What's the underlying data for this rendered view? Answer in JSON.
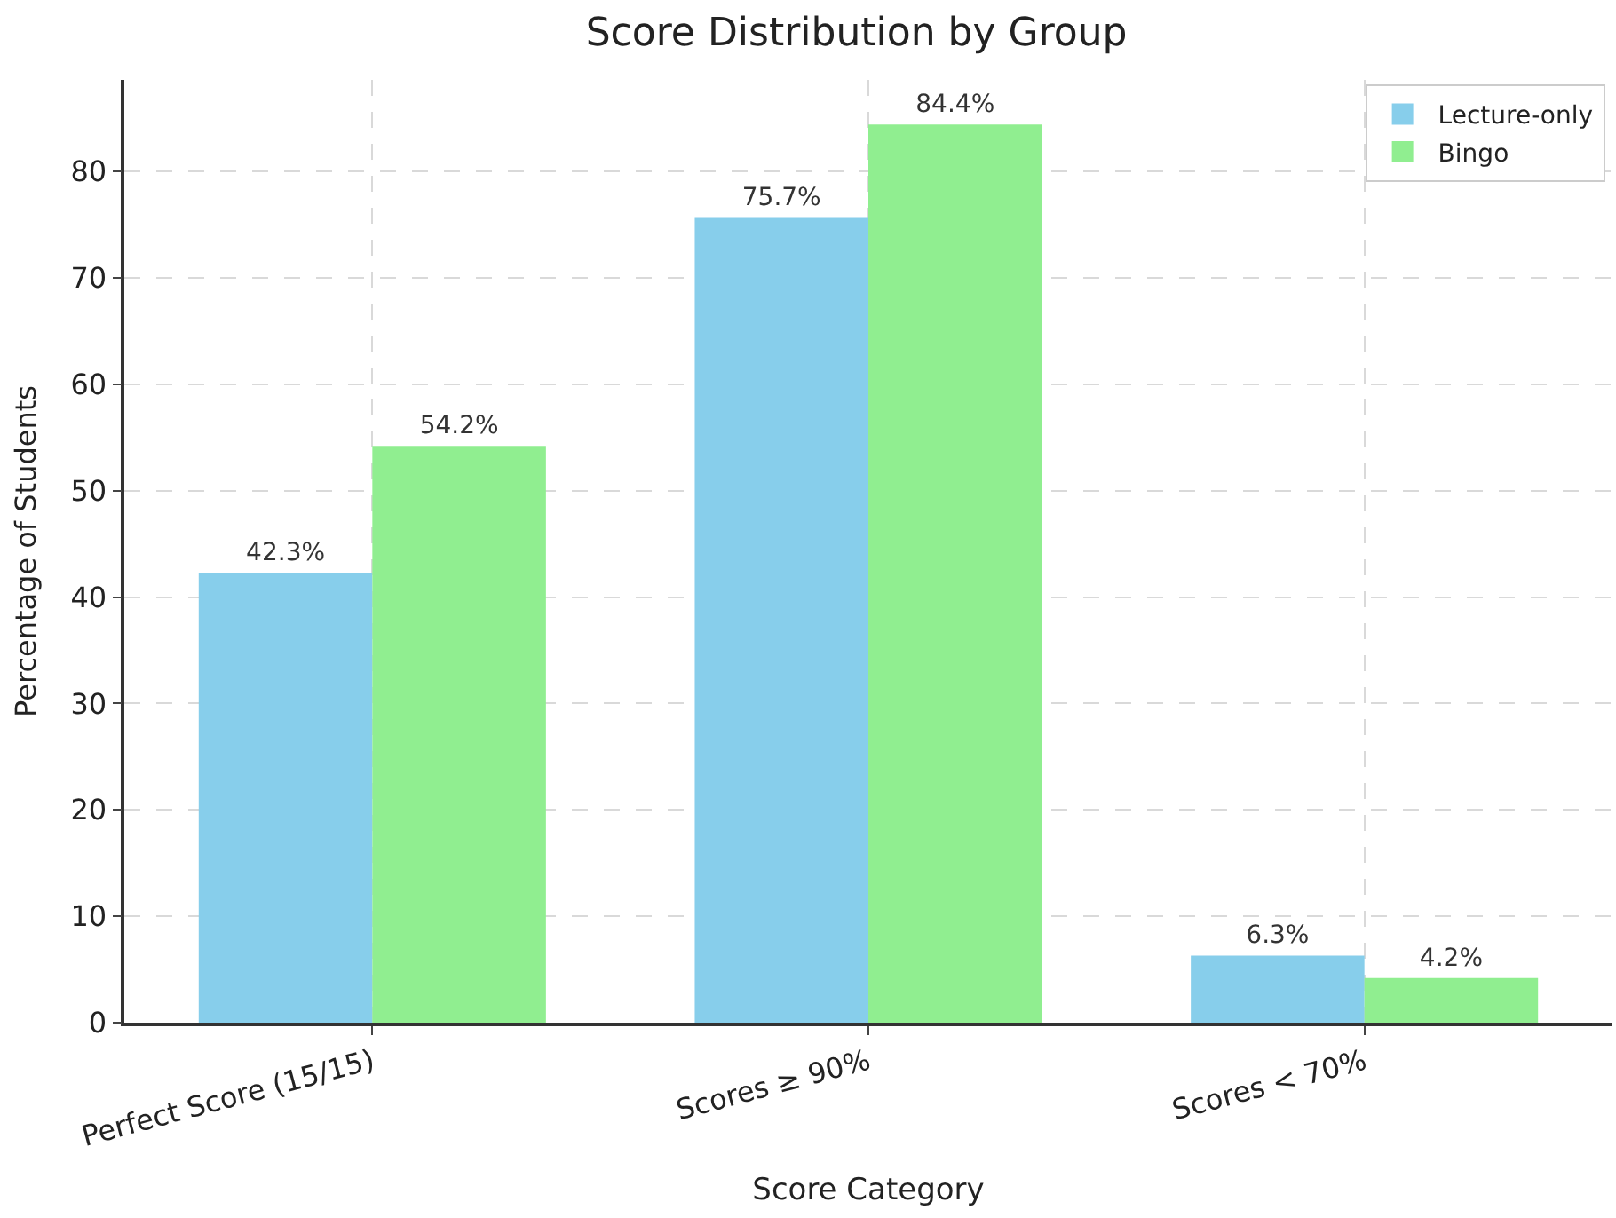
{
  "chart_data": {
    "type": "bar",
    "title": "Score Distribution by Group",
    "xlabel": "Score Category",
    "ylabel": "Percentage of Students",
    "categories": [
      "Perfect Score (15/15)",
      "Scores ≥ 90%",
      "Scores < 70%"
    ],
    "series": [
      {
        "name": "Lecture-only",
        "color": "#87ceeb",
        "values": [
          42.3,
          75.7,
          6.3
        ],
        "value_labels": [
          "42.3%",
          "75.7%",
          "6.3%"
        ]
      },
      {
        "name": "Bingo",
        "color": "#90ee90",
        "values": [
          54.2,
          84.4,
          4.2
        ],
        "value_labels": [
          "54.2%",
          "84.4%",
          "4.2%"
        ]
      }
    ],
    "ylim": [
      0,
      88.6
    ],
    "yticks": [
      0,
      10,
      20,
      30,
      40,
      50,
      60,
      70,
      80
    ],
    "grid": true,
    "legend": "top right"
  }
}
